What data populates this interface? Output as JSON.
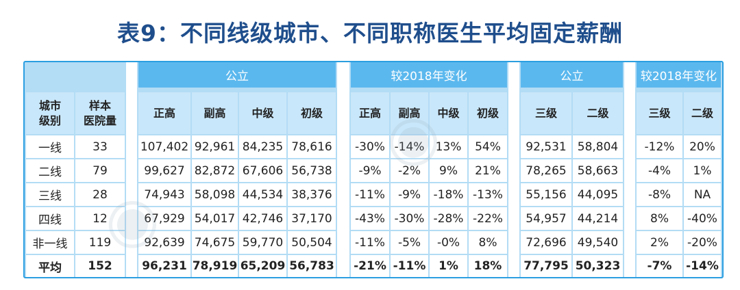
{
  "title": "表9：不同线级城市、不同职称医生平均固定薪酬",
  "group_headers": {
    "public1": "公立",
    "change1": "较2018年变化",
    "public2": "公立",
    "change2": "较2018年变化"
  },
  "sub_headers": [
    "城市\n级别",
    "样本\n医院量",
    "正高",
    "副高",
    "中级",
    "初级",
    "正高",
    "副高",
    "中级",
    "初级",
    "三级",
    "二级",
    "三级",
    "二级"
  ],
  "rows": [
    [
      "一线",
      "33",
      "107,402",
      "92,961",
      "84,235",
      "78,616",
      "-30%",
      "-14%",
      "13%",
      "54%",
      "92,531",
      "58,804",
      "-12%",
      "20%"
    ],
    [
      "二线",
      "79",
      "99,627",
      "82,872",
      "67,606",
      "56,738",
      "-9%",
      "-2%",
      "9%",
      "21%",
      "78,265",
      "58,663",
      "-4%",
      "1%"
    ],
    [
      "三线",
      "28",
      "74,943",
      "58,098",
      "44,534",
      "38,376",
      "-11%",
      "-9%",
      "-18%",
      "-13%",
      "55,156",
      "44,095",
      "-8%",
      "NA"
    ],
    [
      "四线",
      "12",
      "67,929",
      "54,017",
      "42,746",
      "37,170",
      "-43%",
      "-30%",
      "-28%",
      "-22%",
      "54,957",
      "44,214",
      "8%",
      "-40%"
    ],
    [
      "非一线",
      "119",
      "92,639",
      "74,675",
      "59,770",
      "50,504",
      "-11%",
      "-5%",
      "-0%",
      "8%",
      "72,696",
      "49,540",
      "2%",
      "-20%"
    ],
    [
      "平均",
      "152",
      "96,231",
      "78,919",
      "65,209",
      "56,783",
      "-21%",
      "-11%",
      "1%",
      "18%",
      "77,795",
      "50,323",
      "-7%",
      "-14%"
    ]
  ]
}
